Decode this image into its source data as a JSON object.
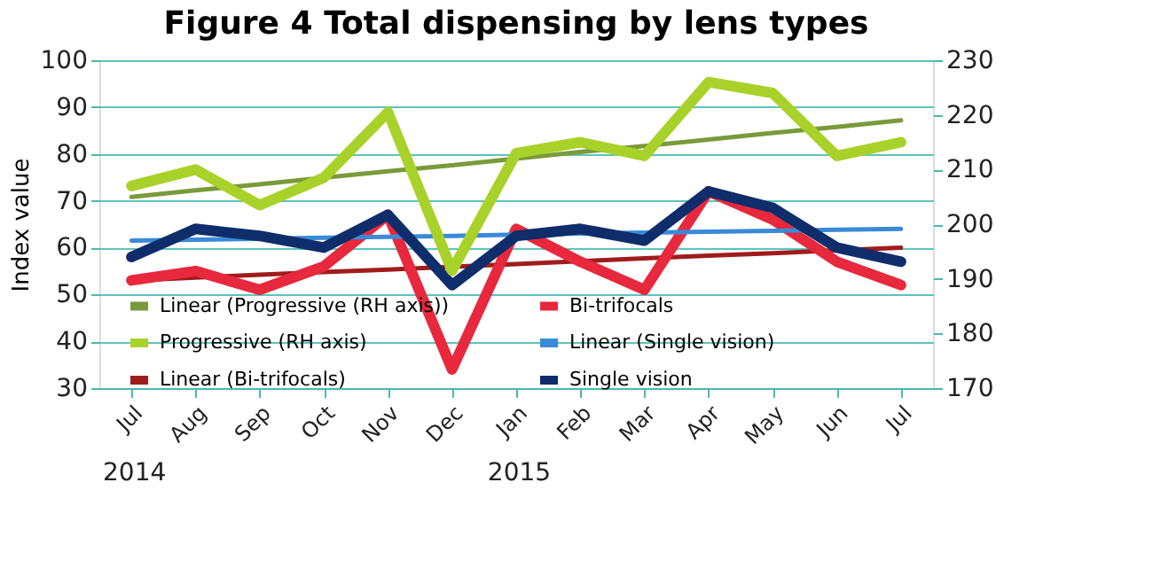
{
  "chart_data": {
    "type": "line",
    "title": "Figure 4 Total dispensing by lens types",
    "ylabel": "Index value",
    "categories": [
      "Jul",
      "Aug",
      "Sep",
      "Oct",
      "Nov",
      "Dec",
      "Jan",
      "Feb",
      "Mar",
      "Apr",
      "May",
      "Jun",
      "Jul"
    ],
    "ylim": [
      30,
      100
    ],
    "yticks": [
      30,
      40,
      50,
      60,
      70,
      80,
      90,
      100
    ],
    "y2lim": [
      170,
      230
    ],
    "y2ticks": [
      170,
      180,
      190,
      200,
      210,
      220,
      230
    ],
    "grid": "y",
    "legend": "bottom",
    "marker": "none",
    "line_style": "solid",
    "annotations": [
      "2014",
      "2015"
    ],
    "series": [
      {
        "name": "Linear (Progressive (RH axis))",
        "color": "#7a9a3a",
        "axis": "y2",
        "values": [
          205,
          206.2,
          207.3,
          208.5,
          209.7,
          210.8,
          212,
          213.2,
          214.3,
          215.5,
          216.7,
          217.8,
          219
        ]
      },
      {
        "name": "Progressive (RH axis)",
        "color": "#a8d22a",
        "axis": "y2",
        "values": [
          207,
          210,
          203.5,
          208.5,
          220.5,
          191.5,
          213,
          215,
          212.5,
          226,
          224,
          212.5,
          215
        ]
      },
      {
        "name": "Linear (Bi-trifocals)",
        "color": "#a01c1c",
        "values": [
          53,
          53.6,
          54.2,
          54.8,
          55.3,
          55.9,
          56.5,
          57.1,
          57.7,
          58.3,
          58.8,
          59.4,
          60
        ]
      },
      {
        "name": "Bi-trifocals",
        "color": "#e8283c",
        "values": [
          53,
          55,
          51,
          56,
          67,
          34,
          64,
          57,
          51,
          72,
          66,
          57,
          52
        ]
      },
      {
        "name": "Linear (Single vision)",
        "color": "#3a8ad8",
        "values": [
          61.5,
          61.7,
          61.9,
          62.1,
          62.3,
          62.5,
          62.8,
          63,
          63.2,
          63.4,
          63.6,
          63.8,
          64
        ]
      },
      {
        "name": "Single vision",
        "color": "#0f2d6b",
        "values": [
          58,
          64,
          62.5,
          60,
          67,
          52,
          62.5,
          64,
          61.5,
          72,
          68.5,
          60,
          57
        ]
      }
    ]
  }
}
